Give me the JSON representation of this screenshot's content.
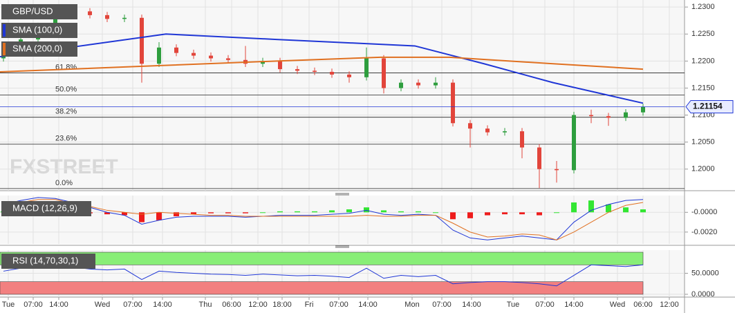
{
  "chart_data": [
    {
      "type": "candlestick",
      "title": "GBP/USD",
      "watermark": "FXSTREET",
      "x": [
        1,
        6,
        11,
        16,
        21,
        26,
        31,
        36,
        41,
        46,
        51,
        56,
        61,
        66,
        71,
        76,
        81,
        86,
        91,
        96,
        101,
        106,
        111,
        116,
        121,
        126,
        131,
        136,
        141,
        146,
        151,
        156,
        161,
        166,
        171,
        176,
        181,
        186
      ],
      "open": [
        1.2205,
        1.2215,
        1.224,
        1.2265,
        1.229,
        1.2292,
        1.2285,
        1.2278,
        1.228,
        1.2195,
        1.2225,
        1.2215,
        1.221,
        1.2205,
        1.2202,
        1.2195,
        1.22,
        1.2185,
        1.2182,
        1.218,
        1.2175,
        1.217,
        1.2205,
        1.215,
        1.216,
        1.2155,
        1.216,
        1.2085,
        1.2075,
        1.2068,
        1.207,
        1.204,
        1.2,
        1.1998,
        1.21,
        1.2098,
        1.2095,
        1.2105
      ],
      "high": [
        1.2221,
        1.2246,
        1.2271,
        1.2296,
        1.2298,
        1.2298,
        1.2291,
        1.2286,
        1.2286,
        1.2235,
        1.2231,
        1.2221,
        1.2216,
        1.2211,
        1.2228,
        1.2206,
        1.2206,
        1.2191,
        1.2188,
        1.2186,
        1.2181,
        1.2225,
        1.2211,
        1.2166,
        1.2166,
        1.217,
        1.2166,
        1.2091,
        1.2081,
        1.2076,
        1.2076,
        1.2046,
        1.2015,
        1.2106,
        1.211,
        1.2104,
        1.2111,
        1.2121
      ],
      "low": [
        1.2199,
        1.2209,
        1.2234,
        1.2259,
        1.2284,
        1.2279,
        1.2272,
        1.2272,
        1.216,
        1.2189,
        1.2209,
        1.2204,
        1.2199,
        1.2196,
        1.2189,
        1.2189,
        1.2179,
        1.2176,
        1.2174,
        1.2169,
        1.216,
        1.2164,
        1.214,
        1.2144,
        1.2149,
        1.2149,
        1.2079,
        1.204,
        1.2062,
        1.2062,
        1.202,
        1.1965,
        1.1975,
        1.1992,
        1.2085,
        1.208,
        1.2089,
        1.2099
      ],
      "close": [
        1.2215,
        1.224,
        1.2265,
        1.229,
        1.2292,
        1.2285,
        1.2278,
        1.228,
        1.2195,
        1.2225,
        1.2215,
        1.221,
        1.2205,
        1.2202,
        1.2195,
        1.22,
        1.2185,
        1.2182,
        1.218,
        1.2175,
        1.217,
        1.2205,
        1.215,
        1.216,
        1.2155,
        1.216,
        1.2085,
        1.2075,
        1.2068,
        1.207,
        1.204,
        1.2,
        1.1998,
        1.21,
        1.2098,
        1.2095,
        1.2105,
        1.2115
      ],
      "up_color": "#2e9e3e",
      "down_color": "#e2453b",
      "lines": [
        {
          "name": "SMA (100,0)",
          "color": "#1f36d6",
          "x": [
            0,
            20,
            48,
            80,
            120,
            140,
            160,
            186
          ],
          "values": [
            1.2208,
            1.2225,
            1.225,
            1.224,
            1.2228,
            1.2195,
            1.216,
            1.2122
          ]
        },
        {
          "name": "SMA (200,0)",
          "color": "#e07020",
          "x": [
            0,
            40,
            80,
            110,
            130,
            160,
            186
          ],
          "values": [
            1.218,
            1.219,
            1.22,
            1.2207,
            1.2207,
            1.2195,
            1.2185
          ]
        }
      ],
      "fib": [
        {
          "label": "61.8%",
          "value": 1.2178
        },
        {
          "label": "50.0%",
          "value": 1.2137
        },
        {
          "label": "38.2%",
          "value": 1.2096
        },
        {
          "label": "23.6%",
          "value": 1.2046
        },
        {
          "label": "0.0%",
          "value": 1.1964
        }
      ],
      "current": 1.21154,
      "ylim": [
        1.196,
        1.2313
      ],
      "yticks": [
        {
          "value": 1.23,
          "label": "1.2300"
        },
        {
          "value": 1.225,
          "label": "1.2250"
        },
        {
          "value": 1.22,
          "label": "1.2200"
        },
        {
          "value": 1.215,
          "label": "1.2150"
        },
        {
          "value": 1.21,
          "label": "1.2100"
        },
        {
          "value": 1.205,
          "label": "1.2050"
        },
        {
          "value": 1.2,
          "label": "1.2000"
        }
      ],
      "xlim": [
        0,
        198
      ],
      "xticks": [
        {
          "value": 2.4,
          "label": "Tue"
        },
        {
          "value": 9.6,
          "label": "07:00"
        },
        {
          "value": 17,
          "label": "14:00"
        },
        {
          "value": 29.6,
          "label": "Wed"
        },
        {
          "value": 38.4,
          "label": "07:00"
        },
        {
          "value": 47,
          "label": "14:00"
        },
        {
          "value": 59.4,
          "label": "Thu"
        },
        {
          "value": 67,
          "label": "06:00"
        },
        {
          "value": 74.6,
          "label": "12:00"
        },
        {
          "value": 81.6,
          "label": "18:00"
        },
        {
          "value": 89.4,
          "label": "Fri"
        },
        {
          "value": 98,
          "label": "07:00"
        },
        {
          "value": 106.4,
          "label": "14:00"
        },
        {
          "value": 119.2,
          "label": "Mon"
        },
        {
          "value": 127.8,
          "label": "07:00"
        },
        {
          "value": 136.4,
          "label": "14:00"
        },
        {
          "value": 148.4,
          "label": "Tue"
        },
        {
          "value": 157.6,
          "label": "07:00"
        },
        {
          "value": 166,
          "label": "14:00"
        },
        {
          "value": 178.6,
          "label": "Wed"
        },
        {
          "value": 186,
          "label": "06:00"
        },
        {
          "value": 193.6,
          "label": "12:00"
        }
      ],
      "grid": true
    },
    {
      "type": "macd",
      "title": "MACD (12,26,9)",
      "x": [
        1,
        6,
        11,
        16,
        21,
        26,
        31,
        36,
        41,
        46,
        51,
        56,
        61,
        66,
        71,
        76,
        81,
        86,
        91,
        96,
        101,
        106,
        111,
        116,
        121,
        126,
        131,
        136,
        141,
        146,
        151,
        156,
        161,
        166,
        171,
        176,
        181,
        186
      ],
      "histogram": [
        0.0001,
        0.0002,
        0.0002,
        0.0001,
        0.0001,
        -0.0001,
        -0.0002,
        -0.0003,
        -0.001,
        -0.0008,
        -0.0004,
        -0.0002,
        -0.0001,
        -0.0001,
        -0.0001,
        0.0,
        0.0001,
        0.0001,
        0.0001,
        0.0002,
        0.0003,
        0.0005,
        0.0002,
        0.0001,
        0.0001,
        0.0,
        -0.0007,
        -0.0006,
        -0.0003,
        -0.0002,
        -0.0002,
        -0.0003,
        0.0,
        0.001,
        0.0012,
        0.0008,
        0.0005,
        0.0003
      ],
      "macd": [
        0.0008,
        0.0012,
        0.0015,
        0.0014,
        0.001,
        0.0005,
        0.0,
        -0.0003,
        -0.0012,
        -0.0008,
        -0.0005,
        -0.0004,
        -0.0004,
        -0.0004,
        -0.0005,
        -0.0004,
        -0.0003,
        -0.0003,
        -0.0003,
        -0.0002,
        -0.0001,
        0.0002,
        -0.0002,
        -0.0003,
        -0.0002,
        -0.0003,
        -0.0018,
        -0.0026,
        -0.0028,
        -0.0026,
        -0.0024,
        -0.0026,
        -0.0028,
        -0.001,
        0.0002,
        0.0008,
        0.0012,
        0.0013
      ],
      "signal": [
        0.0007,
        0.001,
        0.0013,
        0.0013,
        0.0009,
        0.0006,
        0.0002,
        0.0,
        -0.0002,
        0.0,
        -0.0001,
        -0.0002,
        -0.0003,
        -0.0003,
        -0.0004,
        -0.0004,
        -0.0004,
        -0.0004,
        -0.0004,
        -0.0004,
        -0.0004,
        -0.0003,
        -0.0004,
        -0.0004,
        -0.0003,
        -0.0003,
        -0.0011,
        -0.002,
        -0.0025,
        -0.0024,
        -0.0022,
        -0.0023,
        -0.0028,
        -0.002,
        -0.001,
        0.0,
        0.0007,
        0.001
      ],
      "macd_color": "#1f36d6",
      "signal_color": "#e07020",
      "up_color": "#33e633",
      "down_color": "#ee1c1c",
      "ylim": [
        -0.0032,
        0.0017
      ],
      "yticks": [
        {
          "value": 0,
          "label": "-0.0000"
        },
        {
          "value": -0.002,
          "label": "-0.0020"
        }
      ]
    },
    {
      "type": "rsi",
      "title": "RSI (14,70,30,1)",
      "x": [
        1,
        6,
        11,
        16,
        21,
        26,
        31,
        36,
        41,
        46,
        51,
        56,
        61,
        66,
        71,
        76,
        81,
        86,
        91,
        96,
        101,
        106,
        111,
        116,
        121,
        126,
        131,
        136,
        141,
        146,
        151,
        156,
        161,
        166,
        171,
        176,
        181,
        186
      ],
      "values": [
        55,
        62,
        70,
        68,
        65,
        60,
        58,
        60,
        35,
        55,
        52,
        50,
        48,
        47,
        45,
        48,
        46,
        44,
        45,
        43,
        40,
        62,
        38,
        45,
        42,
        45,
        25,
        28,
        30,
        30,
        28,
        25,
        20,
        45,
        70,
        68,
        66,
        70
      ],
      "color": "#1f36d6",
      "bands": [
        {
          "from": 70,
          "to": 100,
          "color": "#88ee77"
        },
        {
          "from": 0,
          "to": 30,
          "color": "#f28080"
        }
      ],
      "ylim": [
        -6.7,
        105
      ],
      "yticks": [
        {
          "value": 50,
          "label": "50.0000"
        },
        {
          "value": 0,
          "label": "0.0000"
        }
      ]
    }
  ]
}
